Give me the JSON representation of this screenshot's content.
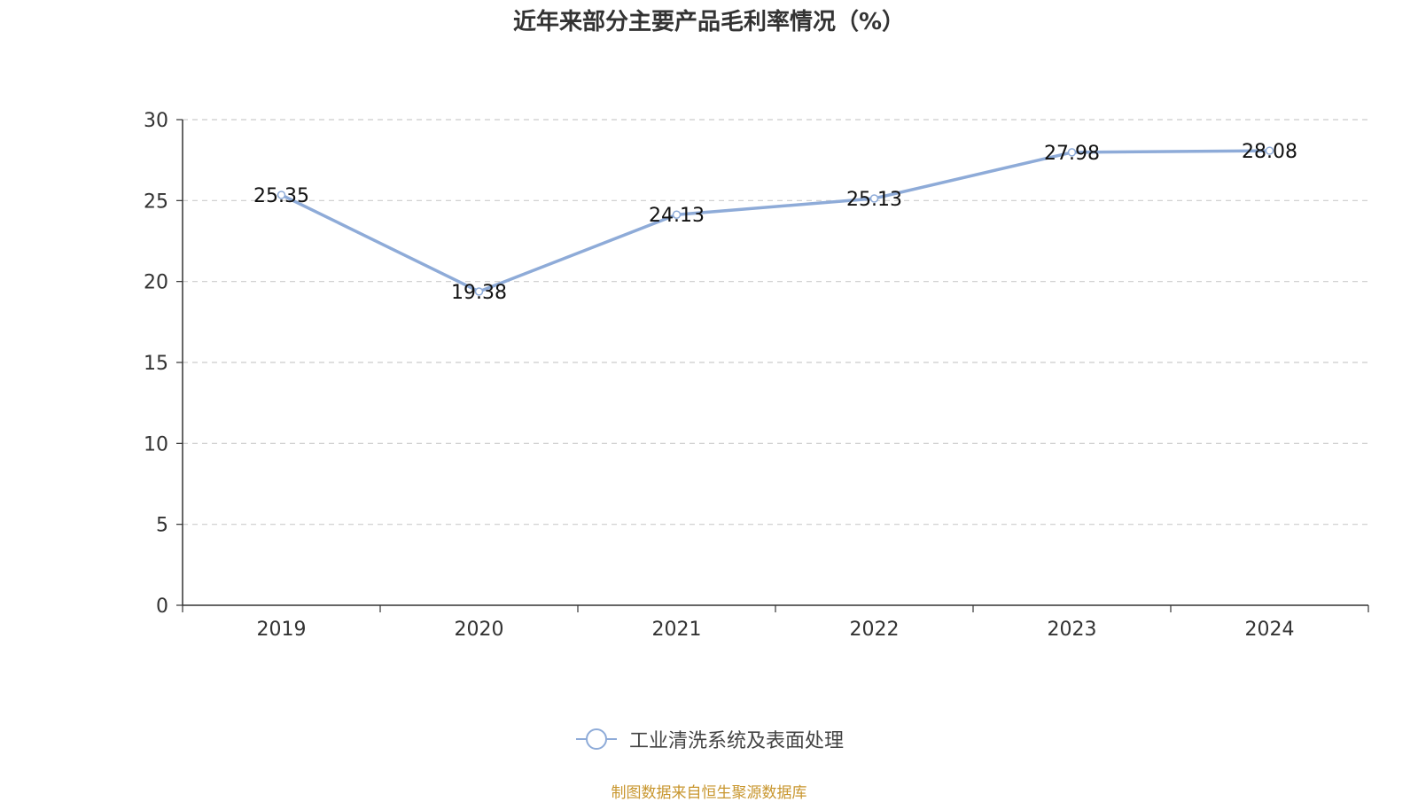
{
  "chart_data": {
    "type": "line",
    "title": "近年来部分主要产品毛利率情况（%）",
    "categories": [
      "2019",
      "2020",
      "2021",
      "2022",
      "2023",
      "2024"
    ],
    "series": [
      {
        "name": "工业清洗系统及表面处理",
        "values": [
          25.35,
          19.38,
          24.13,
          25.13,
          27.98,
          28.08
        ],
        "color": "#8eabd8"
      }
    ],
    "data_labels": [
      "25.35",
      "19.38",
      "24.13",
      "25.13",
      "27.98",
      "28.08"
    ],
    "y_ticks": [
      "0",
      "5",
      "10",
      "15",
      "20",
      "25",
      "30"
    ],
    "ylim": [
      0,
      30
    ],
    "grid": true,
    "legend_position": "bottom-center",
    "source": "制图数据来自恒生聚源数据库"
  }
}
